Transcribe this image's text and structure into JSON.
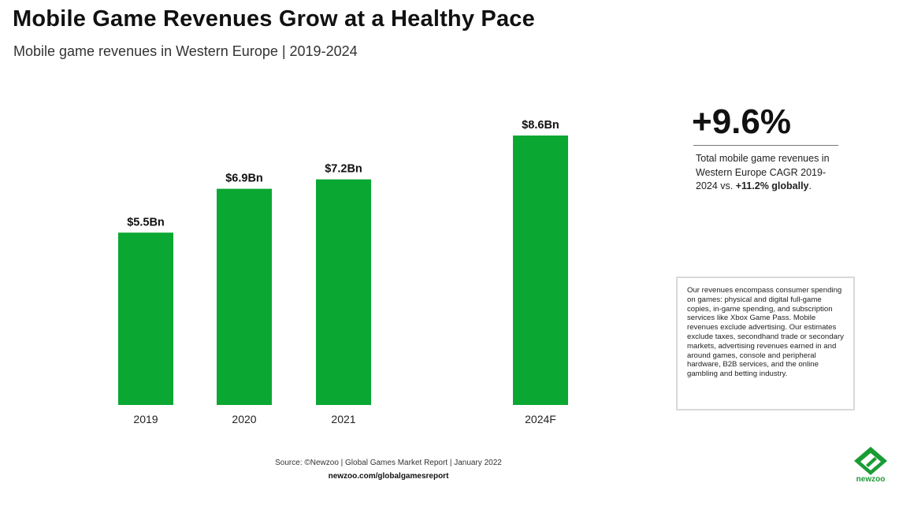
{
  "header": {
    "title": "Mobile Game Revenues Grow at a Healthy Pace",
    "subtitle": "Mobile game revenues in Western Europe | 2019-2024"
  },
  "colors": {
    "bar": "#0aa832",
    "text": "#111111",
    "brand": "#1a9c35"
  },
  "chart_data": {
    "type": "bar",
    "categories": [
      "2019",
      "2020",
      "2021",
      "2024F"
    ],
    "values": [
      5.5,
      6.9,
      7.2,
      8.6
    ],
    "value_labels": [
      "$5.5Bn",
      "$6.9Bn",
      "$7.2Bn",
      "$8.6Bn"
    ],
    "unit": "Bn USD",
    "ylim": [
      0,
      8.6
    ],
    "grid": false,
    "legend": "none"
  },
  "stat": {
    "value": "+9.6%",
    "desc": "Total mobile game revenues in Western Europe CAGR 2019-2024 vs.",
    "highlight": "+11.2% globally",
    "suffix": "."
  },
  "note": "Our revenues encompass consumer spending on games: physical and digital full-game copies, in-game spending, and subscription services like Xbox Game Pass. Mobile revenues exclude advertising. Our estimates exclude taxes, secondhand trade or secondary markets, advertising revenues earned in and around games, console and peripheral hardware, B2B services, and the online gambling and betting industry.",
  "footer": {
    "source": "Source: ©Newzoo | Global Games Market Report | January 2022",
    "url": "newzoo.com/globalgamesreport"
  },
  "logo": {
    "text": "newzoo",
    "icon": "newzoo-logo-icon"
  }
}
